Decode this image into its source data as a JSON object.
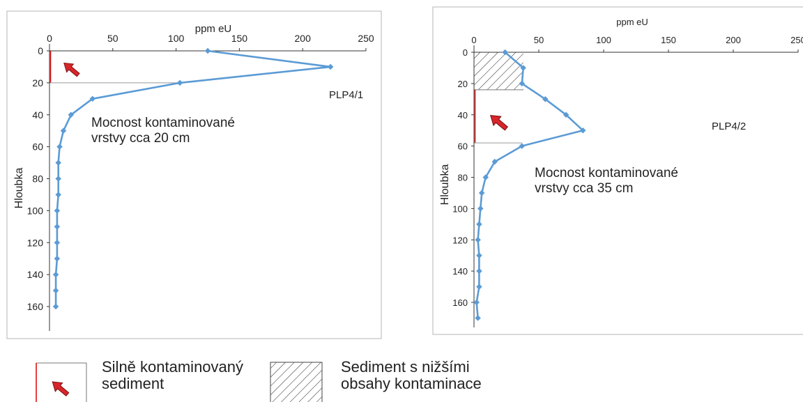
{
  "chart_data": [
    {
      "type": "line",
      "id": "PLP4/1",
      "xlabel": "ppm eU",
      "ylabel": "Hloubka",
      "xlim": [
        0,
        250
      ],
      "ylim": [
        0,
        160
      ],
      "y_inverted": true,
      "xticks": [
        "0",
        "50",
        "100",
        "150",
        "200",
        "250"
      ],
      "yticks": [
        "0",
        "20",
        "40",
        "60",
        "80",
        "100",
        "120",
        "140",
        "160"
      ],
      "series": [
        {
          "name": "",
          "color": "#5b9bd5",
          "points": [
            {
              "x": 125,
              "y": 0
            },
            {
              "x": 222,
              "y": 10
            },
            {
              "x": 103,
              "y": 20
            },
            {
              "x": 34,
              "y": 30
            },
            {
              "x": 17,
              "y": 40
            },
            {
              "x": 11,
              "y": 50
            },
            {
              "x": 8,
              "y": 60
            },
            {
              "x": 7,
              "y": 70
            },
            {
              "x": 7,
              "y": 80
            },
            {
              "x": 7,
              "y": 90
            },
            {
              "x": 6,
              "y": 100
            },
            {
              "x": 6,
              "y": 110
            },
            {
              "x": 6,
              "y": 120
            },
            {
              "x": 6,
              "y": 130
            },
            {
              "x": 5,
              "y": 140
            },
            {
              "x": 5,
              "y": 150
            },
            {
              "x": 5,
              "y": 160
            }
          ]
        }
      ],
      "label": "PLP4/1",
      "annotation": [
        "Mocnost kontaminované",
        "vrstvy cca 20 cm"
      ],
      "contaminated_zone": [
        0,
        20
      ]
    },
    {
      "type": "line",
      "id": "PLP4/2",
      "xlabel": "ppm eU",
      "ylabel": "Hloubka",
      "xlim": [
        0,
        250
      ],
      "ylim": [
        0,
        160
      ],
      "y_inverted": true,
      "xticks": [
        "0",
        "50",
        "100",
        "150",
        "200",
        "250"
      ],
      "yticks": [
        "0",
        "20",
        "40",
        "60",
        "80",
        "100",
        "120",
        "140",
        "160"
      ],
      "series": [
        {
          "name": "",
          "color": "#5b9bd5",
          "points": [
            {
              "x": 24,
              "y": 0
            },
            {
              "x": 38,
              "y": 10
            },
            {
              "x": 37,
              "y": 20
            },
            {
              "x": 55,
              "y": 30
            },
            {
              "x": 71,
              "y": 40
            },
            {
              "x": 84,
              "y": 50
            },
            {
              "x": 37,
              "y": 60
            },
            {
              "x": 16,
              "y": 70
            },
            {
              "x": 9,
              "y": 80
            },
            {
              "x": 6,
              "y": 90
            },
            {
              "x": 5,
              "y": 100
            },
            {
              "x": 4,
              "y": 110
            },
            {
              "x": 3,
              "y": 120
            },
            {
              "x": 4,
              "y": 130
            },
            {
              "x": 4,
              "y": 140
            },
            {
              "x": 4,
              "y": 150
            },
            {
              "x": 2,
              "y": 160
            },
            {
              "x": 3,
              "y": 170
            }
          ]
        }
      ],
      "label": "PLP4/2",
      "annotation": [
        "Mocnost kontaminované",
        "vrstvy cca 35 cm"
      ],
      "hatched_zone": [
        0,
        24
      ],
      "contaminated_zone": [
        24,
        58
      ]
    }
  ],
  "legend": {
    "strong": [
      "Silně kontaminovaný",
      "sediment"
    ],
    "lower": [
      "Sediment s nižšími",
      "obsahy kontaminace"
    ]
  },
  "colors": {
    "line": "#5b9bd5",
    "arrow": "#d7262b",
    "arrow_outline": "#7a0f10",
    "zone_border": "#e00000"
  }
}
